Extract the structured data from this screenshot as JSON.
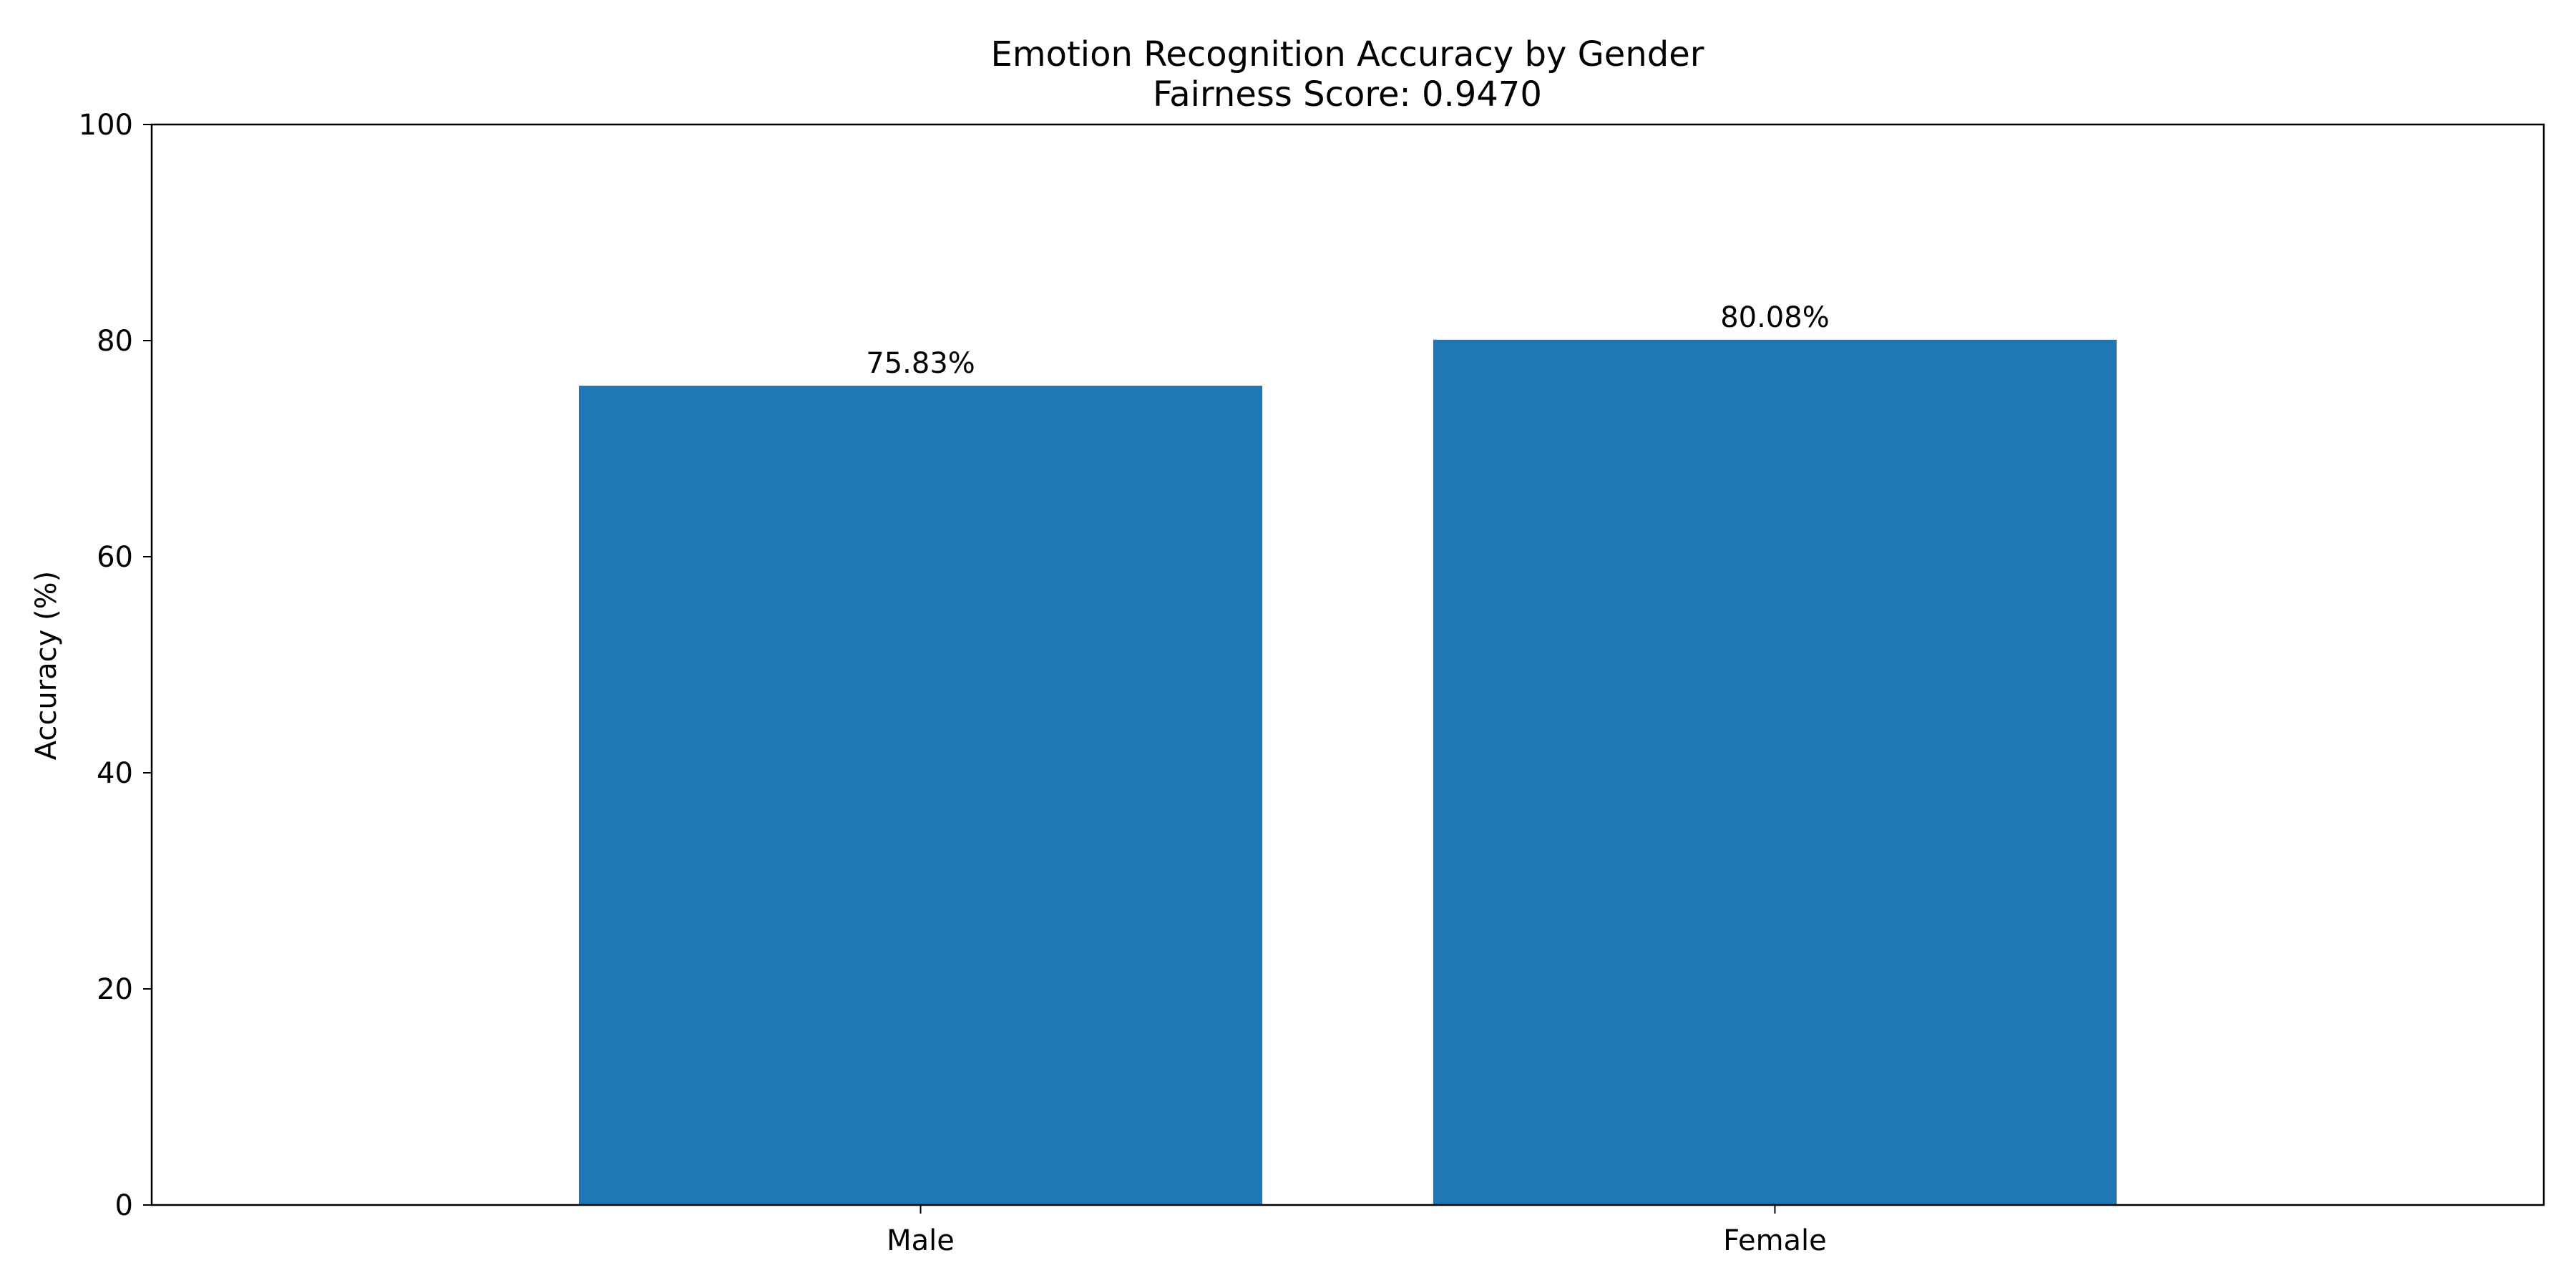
{
  "chart_data": {
    "type": "bar",
    "title": "Emotion Recognition Accuracy by Gender",
    "subtitle": "Fairness Score: 0.9470",
    "xlabel": "",
    "ylabel": "Accuracy (%)",
    "categories": [
      "Male",
      "Female"
    ],
    "values": [
      75.83,
      80.08
    ],
    "data_labels": [
      "75.83%",
      "80.08%"
    ],
    "ylim": [
      0,
      100
    ],
    "yticks": [
      0,
      20,
      40,
      60,
      80,
      100
    ],
    "ytick_labels": [
      "0",
      "20",
      "40",
      "60",
      "80",
      "100"
    ],
    "grid": false,
    "legend": "none",
    "bar_color": "#1f77b4",
    "axis_color": "#000000"
  }
}
